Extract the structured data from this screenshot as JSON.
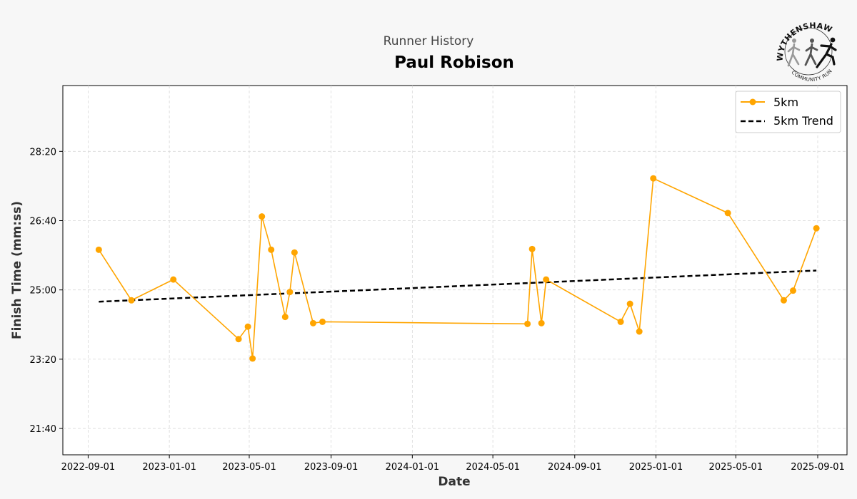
{
  "chart_data": {
    "type": "line",
    "suptitle": "Runner History",
    "title": "Paul Robison",
    "xlabel": "Date",
    "ylabel": "Finish Time (mm:ss)",
    "x_ticks": [
      "2022-09-01",
      "2023-01-01",
      "2023-05-01",
      "2023-09-01",
      "2024-01-01",
      "2024-05-01",
      "2024-09-01",
      "2025-01-01",
      "2025-05-01",
      "2025-09-01"
    ],
    "y_ticks": [
      1300,
      1400,
      1500,
      1600,
      1700
    ],
    "y_tick_labels": [
      "21:40",
      "23:20",
      "25:00",
      "26:40",
      "28:20"
    ],
    "xlim": [
      "2022-07-25",
      "2025-10-15"
    ],
    "ylim": [
      1262,
      1795
    ],
    "grid": true,
    "legend_position": "top-right",
    "colors": {
      "series": "#FFA500",
      "trend": "#000000",
      "plot_bg": "#ffffff",
      "page_bg": "#f7f7f7"
    },
    "series": [
      {
        "name": "5km",
        "style": "line-marker",
        "points": [
          {
            "x": "2022-09-17",
            "y": 1558
          },
          {
            "x": "2022-11-05",
            "y": 1485
          },
          {
            "x": "2023-01-07",
            "y": 1515
          },
          {
            "x": "2023-04-15",
            "y": 1429
          },
          {
            "x": "2023-04-29",
            "y": 1447
          },
          {
            "x": "2023-05-06",
            "y": 1401
          },
          {
            "x": "2023-05-20",
            "y": 1606
          },
          {
            "x": "2023-06-03",
            "y": 1558
          },
          {
            "x": "2023-06-24",
            "y": 1461
          },
          {
            "x": "2023-07-01",
            "y": 1497
          },
          {
            "x": "2023-07-08",
            "y": 1554
          },
          {
            "x": "2023-08-05",
            "y": 1452
          },
          {
            "x": "2023-08-19",
            "y": 1454
          },
          {
            "x": "2024-06-22",
            "y": 1451
          },
          {
            "x": "2024-06-29",
            "y": 1559
          },
          {
            "x": "2024-07-13",
            "y": 1452
          },
          {
            "x": "2024-07-20",
            "y": 1515
          },
          {
            "x": "2024-11-09",
            "y": 1454
          },
          {
            "x": "2024-11-23",
            "y": 1480
          },
          {
            "x": "2024-12-07",
            "y": 1440
          },
          {
            "x": "2024-12-28",
            "y": 1661
          },
          {
            "x": "2025-04-19",
            "y": 1611
          },
          {
            "x": "2025-07-12",
            "y": 1485
          },
          {
            "x": "2025-07-26",
            "y": 1499
          },
          {
            "x": "2025-08-30",
            "y": 1589
          }
        ]
      },
      {
        "name": "5km Trend",
        "style": "dashed",
        "points": [
          {
            "x": "2022-09-17",
            "y": 1483
          },
          {
            "x": "2025-08-30",
            "y": 1528
          }
        ]
      }
    ]
  },
  "logo": {
    "icon": "running-figures-logo",
    "arc_text": "WYTHENSHAWE",
    "sub_text": "COMMUNITY RUN"
  }
}
